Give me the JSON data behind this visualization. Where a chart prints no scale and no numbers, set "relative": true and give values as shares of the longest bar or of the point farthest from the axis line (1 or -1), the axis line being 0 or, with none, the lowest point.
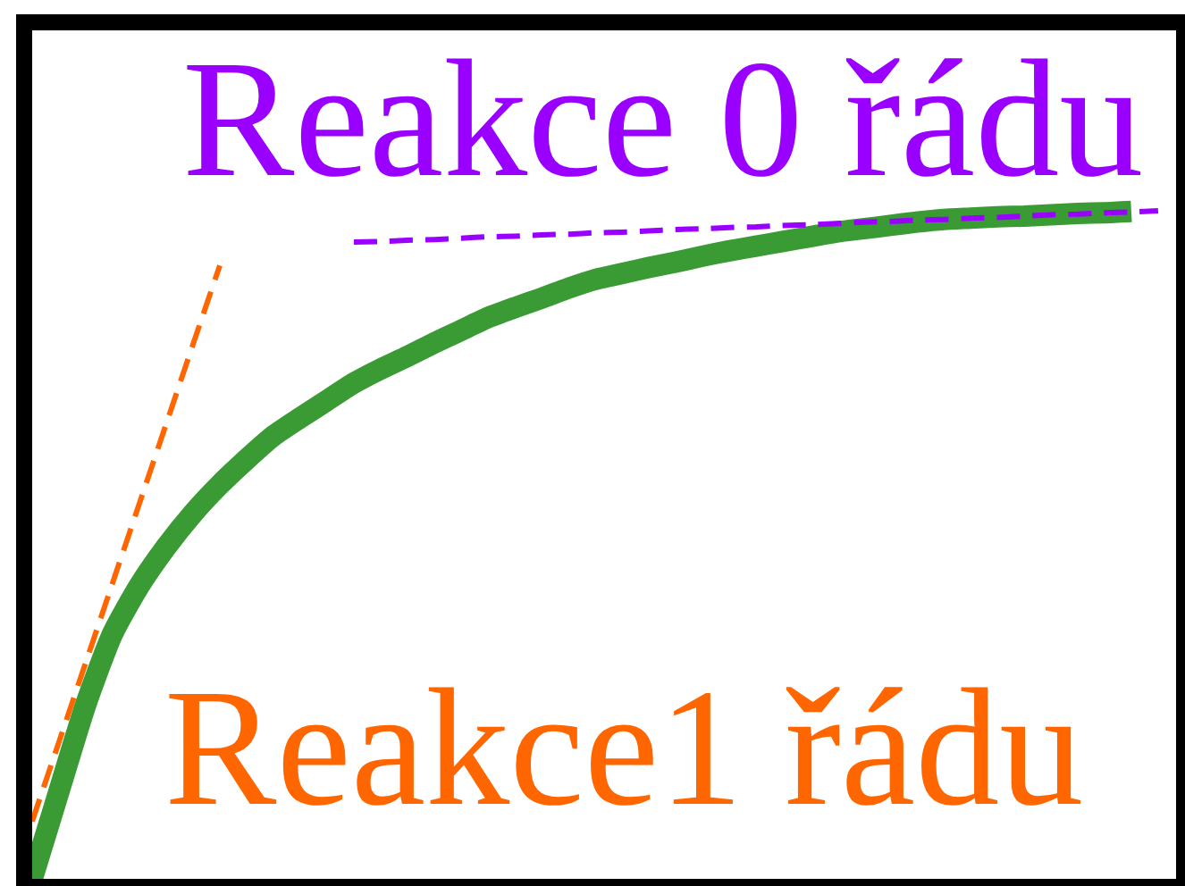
{
  "chart_data": {
    "type": "line",
    "relative": true,
    "line_style": "solid",
    "categories": [
      null,
      null,
      null,
      null,
      null,
      null,
      null,
      null,
      null,
      null,
      null,
      null,
      null,
      null,
      null,
      null,
      null,
      null,
      null,
      null,
      null,
      null,
      null,
      null,
      null,
      null,
      null,
      null,
      null,
      null,
      null,
      null,
      null,
      null,
      null,
      null,
      null,
      null,
      null,
      null,
      null,
      null,
      null
    ],
    "series": [
      {
        "color": "#3a9b35",
        "values": [
          0,
          0.131,
          0.261,
          0.367,
          0.439,
          0.497,
          0.547,
          0.59,
          0.628,
          0.663,
          0.69,
          0.716,
          0.742,
          0.763,
          0.782,
          0.802,
          0.821,
          0.84,
          0.855,
          0.869,
          0.884,
          0.897,
          0.906,
          0.915,
          0.923,
          0.932,
          0.94,
          0.947,
          0.954,
          0.961,
          0.968,
          0.973,
          0.978,
          0.983,
          0.987,
          0.989,
          0.991,
          0.992,
          0.994,
          0.996,
          0.997,
          0.999,
          null
        ]
      },
      {
        "name": "Reakce1 řádu",
        "color": "#ff6600",
        "line_style": "dashed",
        "values": [
          0.086,
          0.205,
          0.324,
          0.443,
          0.562,
          0.681,
          0.8,
          0.918,
          null,
          null,
          null,
          null,
          null,
          null,
          null,
          null,
          null,
          null,
          null,
          null,
          null,
          null,
          null,
          null,
          null,
          null,
          null,
          null,
          null,
          null,
          null,
          null,
          null,
          null,
          null,
          null,
          null,
          null,
          null,
          null,
          null,
          null,
          null
        ]
      },
      {
        "name": "Reakce 0 řádu",
        "color": "#9900ff",
        "line_style": "dashed",
        "values": [
          null,
          null,
          null,
          null,
          null,
          null,
          null,
          null,
          null,
          null,
          null,
          null,
          0.953,
          0.954,
          0.956,
          0.957,
          0.959,
          0.961,
          0.962,
          0.964,
          0.965,
          0.967,
          0.968,
          0.97,
          0.972,
          0.973,
          0.975,
          0.976,
          0.978,
          0.979,
          0.981,
          0.983,
          0.984,
          0.986,
          0.987,
          0.989,
          0.99,
          0.992,
          0.994,
          0.995,
          0.997,
          0.998,
          1
        ]
      }
    ]
  }
}
